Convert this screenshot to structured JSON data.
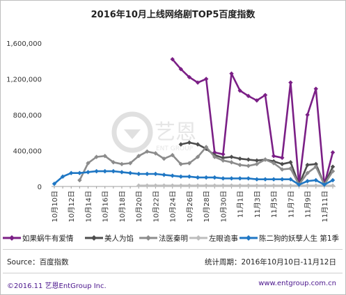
{
  "title": "2016年10月上线网络剧TOP5百度指数",
  "source_label": "Source：百度指数",
  "period_label": "统计周期：2016年10月10日-11月12日",
  "footer_left": "©2016.11  艺恩EntGroup Inc.",
  "footer_right": "www.entgroup.com.cn",
  "watermark_text": "艺恩",
  "watermark_sub": "ENT GROUP",
  "chart_data": {
    "type": "line",
    "title": "2016年10月上线网络剧TOP5百度指数",
    "ylim": [
      0,
      1600000
    ],
    "y_ticks": [
      0,
      400000,
      800000,
      1200000,
      1600000
    ],
    "y_tick_labels": [
      "0",
      "400,000",
      "800,000",
      "1,200,000",
      "1,600,000"
    ],
    "x_tick_labels": [
      "10月10日",
      "10月12日",
      "10月14日",
      "10月16日",
      "10月18日",
      "10月20日",
      "10月22日",
      "10月24日",
      "10月26日",
      "10月28日",
      "10月30日",
      "11月1日",
      "11月3日",
      "11月5日",
      "11月7日",
      "11月9日",
      "11月11日"
    ],
    "legend_position": "bottom",
    "grid": false,
    "x": [
      "10/10",
      "10/11",
      "10/12",
      "10/13",
      "10/14",
      "10/15",
      "10/16",
      "10/17",
      "10/18",
      "10/19",
      "10/20",
      "10/21",
      "10/22",
      "10/23",
      "10/24",
      "10/25",
      "10/26",
      "10/27",
      "10/28",
      "10/29",
      "10/30",
      "10/31",
      "11/1",
      "11/2",
      "11/3",
      "11/4",
      "11/5",
      "11/6",
      "11/7",
      "11/8",
      "11/9",
      "11/10",
      "11/11",
      "11/12"
    ],
    "series": [
      {
        "name": "如果蜗牛有爱情",
        "color": "#7b1f86",
        "marker": "diamond",
        "values": [
          null,
          null,
          null,
          null,
          null,
          null,
          null,
          null,
          null,
          null,
          null,
          null,
          null,
          null,
          1420000,
          1310000,
          1220000,
          1160000,
          1200000,
          380000,
          360000,
          1260000,
          1070000,
          1010000,
          960000,
          1020000,
          340000,
          320000,
          1160000,
          20000,
          800000,
          1090000,
          20000,
          380000
        ]
      },
      {
        "name": "美人为馅",
        "color": "#4d4d4d",
        "marker": "diamond",
        "values": [
          null,
          null,
          null,
          null,
          null,
          null,
          null,
          null,
          null,
          null,
          null,
          null,
          null,
          null,
          null,
          470000,
          490000,
          470000,
          420000,
          350000,
          320000,
          330000,
          310000,
          300000,
          290000,
          300000,
          280000,
          250000,
          270000,
          20000,
          240000,
          250000,
          20000,
          220000
        ]
      },
      {
        "name": "法医秦明",
        "color": "#8c8c8c",
        "marker": "diamond",
        "values": [
          null,
          null,
          null,
          70000,
          260000,
          330000,
          340000,
          270000,
          250000,
          260000,
          340000,
          390000,
          370000,
          310000,
          350000,
          250000,
          260000,
          330000,
          440000,
          330000,
          290000,
          270000,
          240000,
          230000,
          250000,
          300000,
          260000,
          190000,
          200000,
          20000,
          150000,
          220000,
          20000,
          170000
        ]
      },
      {
        "name": "左眼诡事",
        "color": "#bdbdbd",
        "marker": "diamond",
        "values": [
          null,
          null,
          null,
          null,
          null,
          null,
          null,
          null,
          null,
          null,
          10000,
          10000,
          10000,
          10000,
          10000,
          10000,
          10000,
          10000,
          10000,
          10000,
          10000,
          10000,
          10000,
          10000,
          10000,
          10000,
          10000,
          10000,
          10000,
          10000,
          10000,
          10000,
          10000,
          10000
        ]
      },
      {
        "name": "陈二狗的妖孽人生 第1季",
        "color": "#1f77c4",
        "marker": "diamond",
        "values": [
          30000,
          110000,
          150000,
          150000,
          160000,
          170000,
          170000,
          170000,
          160000,
          150000,
          140000,
          140000,
          140000,
          130000,
          120000,
          110000,
          110000,
          100000,
          100000,
          100000,
          90000,
          90000,
          90000,
          90000,
          80000,
          80000,
          80000,
          80000,
          80000,
          20000,
          60000,
          70000,
          20000,
          70000
        ]
      }
    ]
  }
}
